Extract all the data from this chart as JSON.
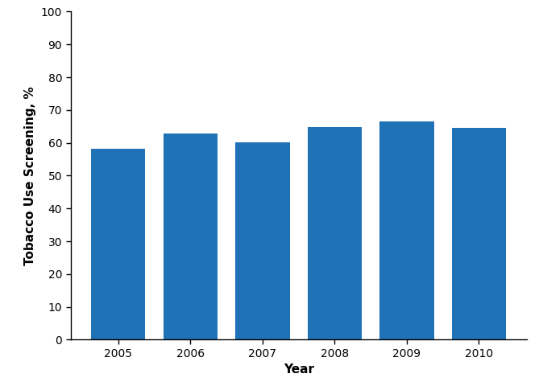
{
  "categories": [
    "2005",
    "2006",
    "2007",
    "2008",
    "2009",
    "2010"
  ],
  "values": [
    58.2,
    62.8,
    60.1,
    64.9,
    66.5,
    64.5
  ],
  "bar_color": "#1F72B5",
  "bar_edgecolor": "#1F72B5",
  "xlabel": "Year",
  "ylabel": "Tobacco Use Screening, %",
  "ylim": [
    0,
    100
  ],
  "yticks": [
    0,
    10,
    20,
    30,
    40,
    50,
    60,
    70,
    80,
    90,
    100
  ],
  "xlabel_fontsize": 11,
  "ylabel_fontsize": 11,
  "tick_fontsize": 10,
  "background_color": "#ffffff",
  "bar_width": 0.75
}
